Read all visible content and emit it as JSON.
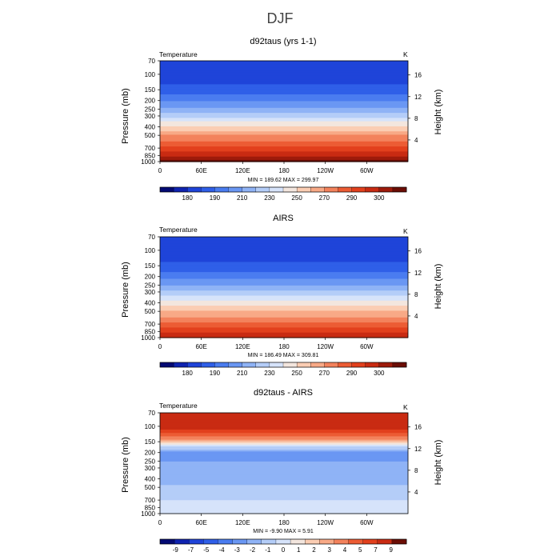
{
  "figure": {
    "title": "DJF"
  },
  "chart_data": [
    {
      "type": "heatmap",
      "title": "d92taus (yrs 1-1)",
      "variable_label": "Temperature",
      "units": "K",
      "xlabel": "",
      "ylabel": "Pressure (mb)",
      "y2label": "Height (km)",
      "x_ticks": [
        "0",
        "60E",
        "120E",
        "180",
        "120W",
        "60W"
      ],
      "y_ticks": [
        "70",
        "100",
        "150",
        "200",
        "250",
        "300",
        "400",
        "500",
        "700",
        "850",
        "1000"
      ],
      "y_ticks_values": [
        70,
        100,
        150,
        200,
        250,
        300,
        400,
        500,
        700,
        850,
        1000
      ],
      "y2_ticks": [
        "4",
        "8",
        "12",
        "16"
      ],
      "y2_ticks_values": [
        4,
        8,
        12,
        16
      ],
      "ylim": [
        1000,
        70
      ],
      "log_scale_y": true,
      "stats": "MIN = 189.62   MAX = 299.97",
      "min": 189.62,
      "max": 299.97,
      "colorbar_labels": [
        "180",
        "190",
        "210",
        "230",
        "250",
        "270",
        "290",
        "300"
      ],
      "colorbar_colors": [
        "#040a73",
        "#0f23b0",
        "#1f44d9",
        "#2f5fe8",
        "#4a7cf0",
        "#6a97f3",
        "#8fb3f6",
        "#b4cdf8",
        "#d6e3fa",
        "#f3e6de",
        "#fbcdb3",
        "#f8a986",
        "#f3825c",
        "#ec5c34",
        "#e2401d",
        "#c92b12",
        "#9e1b0b",
        "#6b0d05"
      ],
      "profile": [
        {
          "p": 70,
          "v": 203
        },
        {
          "p": 100,
          "v": 204
        },
        {
          "p": 150,
          "v": 210
        },
        {
          "p": 200,
          "v": 219
        },
        {
          "p": 250,
          "v": 228
        },
        {
          "p": 300,
          "v": 237
        },
        {
          "p": 400,
          "v": 252
        },
        {
          "p": 500,
          "v": 263
        },
        {
          "p": 700,
          "v": 278
        },
        {
          "p": 850,
          "v": 287
        },
        {
          "p": 1000,
          "v": 296
        }
      ]
    },
    {
      "type": "heatmap",
      "title": "AIRS",
      "variable_label": "Temperature",
      "units": "K",
      "xlabel": "",
      "ylabel": "Pressure (mb)",
      "y2label": "Height (km)",
      "x_ticks": [
        "0",
        "60E",
        "120E",
        "180",
        "120W",
        "60W"
      ],
      "y_ticks": [
        "70",
        "100",
        "150",
        "200",
        "250",
        "300",
        "400",
        "500",
        "700",
        "850",
        "1000"
      ],
      "y_ticks_values": [
        70,
        100,
        150,
        200,
        250,
        300,
        400,
        500,
        700,
        850,
        1000
      ],
      "y2_ticks": [
        "4",
        "8",
        "12",
        "16"
      ],
      "y2_ticks_values": [
        4,
        8,
        12,
        16
      ],
      "ylim": [
        1000,
        70
      ],
      "log_scale_y": true,
      "stats": "MIN = 186.49   MAX = 309.81",
      "min": 186.49,
      "max": 309.81,
      "colorbar_labels": [
        "180",
        "190",
        "210",
        "230",
        "250",
        "270",
        "290",
        "300"
      ],
      "colorbar_colors": [
        "#040a73",
        "#0f23b0",
        "#1f44d9",
        "#2f5fe8",
        "#4a7cf0",
        "#6a97f3",
        "#8fb3f6",
        "#b4cdf8",
        "#d6e3fa",
        "#f3e6de",
        "#fbcdb3",
        "#f8a986",
        "#f3825c",
        "#ec5c34",
        "#e2401d",
        "#c92b12",
        "#9e1b0b",
        "#6b0d05"
      ],
      "profile": [
        {
          "p": 70,
          "v": 203
        },
        {
          "p": 100,
          "v": 201
        },
        {
          "p": 150,
          "v": 209
        },
        {
          "p": 200,
          "v": 218
        },
        {
          "p": 250,
          "v": 227
        },
        {
          "p": 300,
          "v": 236
        },
        {
          "p": 400,
          "v": 251
        },
        {
          "p": 500,
          "v": 262
        },
        {
          "p": 700,
          "v": 277
        },
        {
          "p": 850,
          "v": 287
        },
        {
          "p": 1000,
          "v": 297
        }
      ]
    },
    {
      "type": "heatmap",
      "title": "d92taus - AIRS",
      "variable_label": "Temperature",
      "units": "K",
      "xlabel": "",
      "ylabel": "Pressure (mb)",
      "y2label": "Height (km)",
      "x_ticks": [
        "0",
        "60E",
        "120E",
        "180",
        "120W",
        "60W"
      ],
      "y_ticks": [
        "70",
        "100",
        "150",
        "200",
        "250",
        "300",
        "400",
        "500",
        "700",
        "850",
        "1000"
      ],
      "y_ticks_values": [
        70,
        100,
        150,
        200,
        250,
        300,
        400,
        500,
        700,
        850,
        1000
      ],
      "y2_ticks": [
        "4",
        "8",
        "12",
        "16"
      ],
      "y2_ticks_values": [
        4,
        8,
        12,
        16
      ],
      "ylim": [
        1000,
        70
      ],
      "log_scale_y": true,
      "stats": "MIN =   -9.90   MAX =    5.91",
      "min": -9.9,
      "max": 5.91,
      "colorbar_labels": [
        "-9",
        "-7",
        "-5",
        "-4",
        "-3",
        "-2",
        "-1",
        "0",
        "1",
        "2",
        "3",
        "4",
        "5",
        "7",
        "9"
      ],
      "colorbar_colors": [
        "#040a73",
        "#0f23b0",
        "#1f44d9",
        "#2f5fe8",
        "#4a7cf0",
        "#6a97f3",
        "#8fb3f6",
        "#b4cdf8",
        "#d6e3fa",
        "#f3e6de",
        "#fbcdb3",
        "#f8a986",
        "#f3825c",
        "#ec5c34",
        "#e2401d",
        "#c92b12",
        "#6b0d05"
      ],
      "profile": [
        {
          "p": 70,
          "v": 4.5
        },
        {
          "p": 100,
          "v": 5.0
        },
        {
          "p": 130,
          "v": 2.5
        },
        {
          "p": 150,
          "v": 0.5
        },
        {
          "p": 170,
          "v": -2.5
        },
        {
          "p": 200,
          "v": -4.5
        },
        {
          "p": 300,
          "v": -4.2
        },
        {
          "p": 400,
          "v": -3.8
        },
        {
          "p": 500,
          "v": -3.2
        },
        {
          "p": 700,
          "v": -2.5
        },
        {
          "p": 850,
          "v": -1.8
        },
        {
          "p": 1000,
          "v": -1.5
        }
      ]
    }
  ]
}
